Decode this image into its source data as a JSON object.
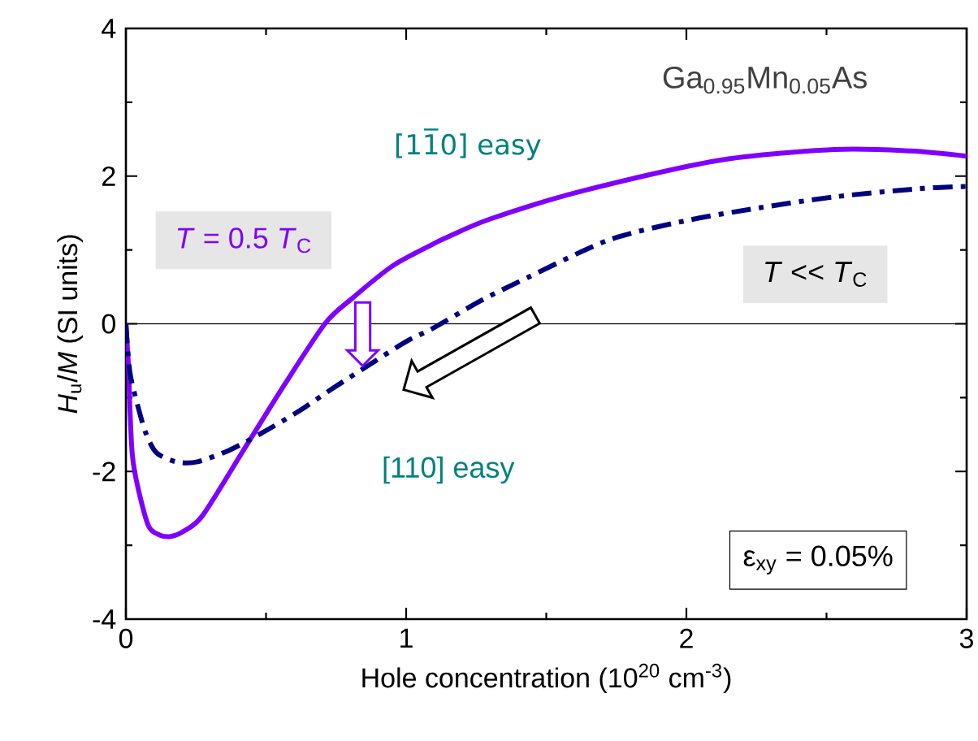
{
  "chart_data": {
    "type": "line",
    "xlabel": "Hole concentration  (10$^{20}$ cm$^{-3}$)",
    "ylabel": "*H*$_{u}$/*M* (SI units)",
    "xlim": [
      0,
      3
    ],
    "ylim": [
      -4,
      4
    ],
    "xticks": [
      0,
      1,
      2,
      3
    ],
    "yticks": [
      -4,
      -2,
      0,
      2,
      4
    ],
    "ref_lines": [
      {
        "axis": "y",
        "value": 0,
        "color": "#000000"
      }
    ],
    "annotations": [
      "Ga$_{0.95}$Mn$_{0.05}$As",
      "[11̅0] easy",
      "[110] easy",
      "ε$_{xy}$ = 0.05%"
    ],
    "series": [
      {
        "name": "*T* = 0.5 *T*$_{C}$",
        "color": "#7f00ff",
        "line_style": "solid",
        "x": [
          0,
          0.009,
          0.014,
          0.023,
          0.043,
          0.081,
          0.12,
          0.16,
          0.21,
          0.275,
          0.42,
          0.565,
          0.71,
          0.806,
          0.95,
          1.096,
          1.145,
          1.3,
          1.63,
          2.11,
          2.53,
          2.8,
          3.0
        ],
        "values": [
          0,
          -0.57,
          -1.12,
          -1.78,
          -2.22,
          -2.74,
          -2.86,
          -2.88,
          -2.8,
          -2.59,
          -1.71,
          -0.83,
          0,
          0.34,
          0.78,
          1.08,
          1.17,
          1.42,
          1.8,
          2.21,
          2.36,
          2.34,
          2.27
        ]
      },
      {
        "name": "*T* << *T*$_{C}$",
        "color": "#000080",
        "line_style": "dashdot",
        "x": [
          0,
          0.014,
          0.043,
          0.072,
          0.11,
          0.18,
          0.255,
          0.37,
          0.48,
          0.61,
          0.74,
          0.875,
          1.0,
          1.096,
          1.27,
          1.43,
          1.72,
          1.99,
          2.26,
          2.53,
          2.83,
          3.0
        ],
        "values": [
          0,
          -0.65,
          -1.12,
          -1.49,
          -1.75,
          -1.87,
          -1.87,
          -1.71,
          -1.49,
          -1.2,
          -0.87,
          -0.54,
          -0.24,
          -0.06,
          0.32,
          0.62,
          1.13,
          1.39,
          1.57,
          1.72,
          1.83,
          1.86
        ]
      }
    ]
  }
}
